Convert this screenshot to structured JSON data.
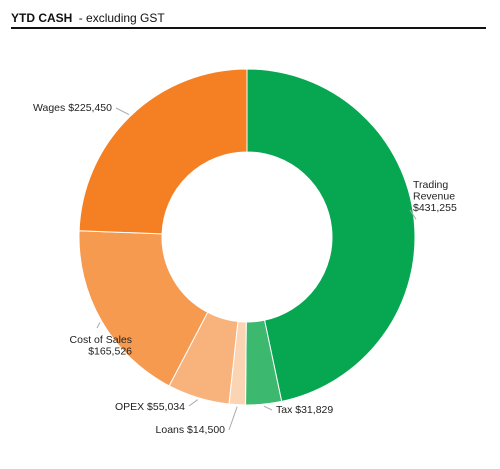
{
  "header": {
    "title": "YTD CASH",
    "subtitle": "- excluding GST"
  },
  "chart_data": {
    "type": "pie",
    "subtype": "donut",
    "title": "YTD CASH",
    "subtitle": "- excluding GST",
    "currency_symbol": "$",
    "slices": [
      {
        "name": "Trading Revenue",
        "value": 431255,
        "value_label": "$431,255",
        "color": "#07a651"
      },
      {
        "name": "Tax",
        "value": 31829,
        "value_label": "$31,829",
        "color": "#3db86f"
      },
      {
        "name": "Loans",
        "value": 14500,
        "value_label": "$14,500",
        "color": "#fbd4b3"
      },
      {
        "name": "OPEX",
        "value": 55034,
        "value_label": "$55,034",
        "color": "#f8b37c"
      },
      {
        "name": "Cost of Sales",
        "value": 165526,
        "value_label": "$165,526",
        "color": "#f69a50"
      },
      {
        "name": "Wages",
        "value": 225450,
        "value_label": "$225,450",
        "color": "#f58024"
      }
    ]
  }
}
